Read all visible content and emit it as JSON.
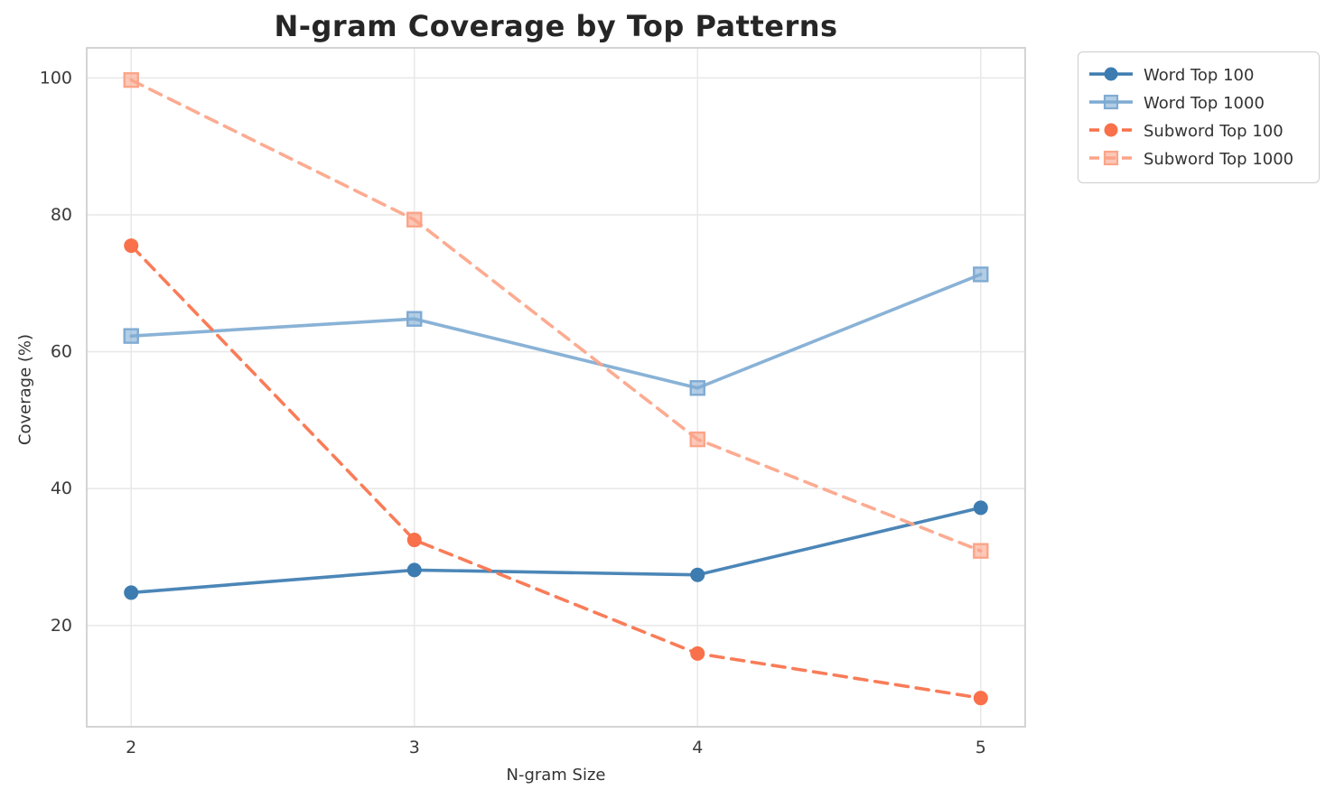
{
  "title": "N-gram Coverage by Top Patterns",
  "chart_data": {
    "type": "line",
    "title": "N-gram Coverage by Top Patterns",
    "xlabel": "N-gram Size",
    "ylabel": "Coverage (%)",
    "x": [
      2,
      3,
      4,
      5
    ],
    "xticks": [
      2,
      3,
      4,
      5
    ],
    "yticks": [
      20,
      40,
      60,
      80,
      100
    ],
    "xlim": [
      1.843,
      5.157
    ],
    "ylim": [
      5.2,
      104.4
    ],
    "grid": true,
    "legend_position": "outside-upper-right",
    "series": [
      {
        "name": "Word Top 100",
        "color": "#3d7cb1",
        "marker": "circle",
        "linestyle": "solid",
        "values": [
          24.8,
          28.1,
          27.4,
          37.2
        ]
      },
      {
        "name": "Word Top 1000",
        "color": "#7fabd3",
        "marker": "square",
        "linestyle": "solid",
        "values": [
          62.3,
          64.8,
          54.7,
          71.3
        ]
      },
      {
        "name": "Subword Top 100",
        "color": "#f8714a",
        "marker": "circle",
        "linestyle": "dashed",
        "values": [
          75.5,
          32.5,
          15.9,
          9.4
        ]
      },
      {
        "name": "Subword Top 1000",
        "color": "#fca488",
        "marker": "square",
        "linestyle": "dashed",
        "values": [
          99.7,
          79.3,
          47.2,
          30.9
        ]
      }
    ]
  },
  "style": {
    "grid_color": "#e9e9e9",
    "spine_color": "#d0d0d0",
    "tick_label_color": "#3a3a3a",
    "title_color": "#262626",
    "background": "#ffffff"
  }
}
